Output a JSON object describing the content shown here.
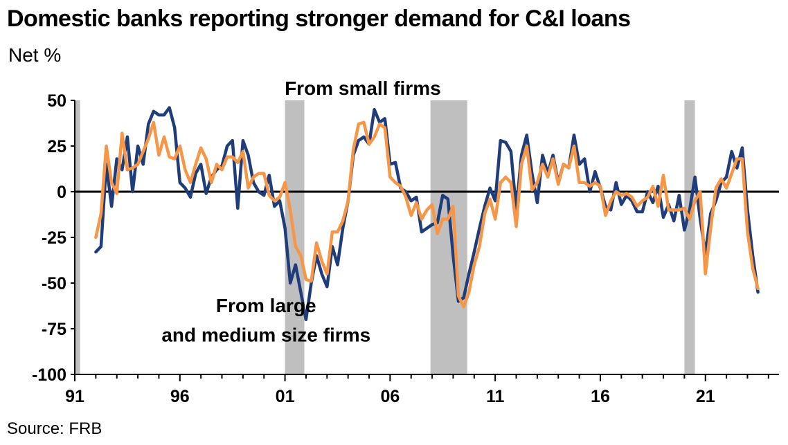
{
  "title": "Domestic banks reporting stronger demand for C&I loans",
  "subtitle": "Net %",
  "source": "Source: FRB",
  "chart_data": {
    "type": "line",
    "ylim": [
      -100,
      50
    ],
    "xlim": [
      1991.0,
      2024.5
    ],
    "y_ticks": [
      {
        "value": 50,
        "label": "50"
      },
      {
        "value": 25,
        "label": "25"
      },
      {
        "value": 0,
        "label": "0"
      },
      {
        "value": -25,
        "label": "-25"
      },
      {
        "value": -50,
        "label": "-50"
      },
      {
        "value": -75,
        "label": "-75"
      },
      {
        "value": -100,
        "label": "-100"
      }
    ],
    "x_ticks": [
      {
        "value": 1991,
        "label": "91"
      },
      {
        "value": 1996,
        "label": "96"
      },
      {
        "value": 2001,
        "label": "01"
      },
      {
        "value": 2006,
        "label": "06"
      },
      {
        "value": 2011,
        "label": "11"
      },
      {
        "value": 2016,
        "label": "16"
      },
      {
        "value": 2021,
        "label": "21"
      }
    ],
    "recessions": [
      {
        "start": 1991.0,
        "end": 1991.25
      },
      {
        "start": 2001.0,
        "end": 2001.92
      },
      {
        "start": 2007.92,
        "end": 2009.67
      },
      {
        "start": 2020.0,
        "end": 2020.5
      }
    ],
    "annotations": [
      {
        "text": "From small firms",
        "x": 2004.7,
        "y": 53
      },
      {
        "text": "From large",
        "x": 2000.1,
        "y": -66
      },
      {
        "text": "and medium size firms",
        "x": 2000.1,
        "y": -82
      }
    ],
    "series": [
      {
        "name": "From large and medium size firms",
        "color": "#1f3d7a",
        "points": [
          [
            1992.0,
            -33
          ],
          [
            1992.25,
            -30
          ],
          [
            1992.5,
            15
          ],
          [
            1992.75,
            -8
          ],
          [
            1993.0,
            18
          ],
          [
            1993.25,
            12
          ],
          [
            1993.5,
            30
          ],
          [
            1993.75,
            0
          ],
          [
            1994.0,
            25
          ],
          [
            1994.25,
            15
          ],
          [
            1994.5,
            37
          ],
          [
            1994.75,
            44
          ],
          [
            1995.0,
            42
          ],
          [
            1995.25,
            42
          ],
          [
            1995.5,
            46
          ],
          [
            1995.75,
            35
          ],
          [
            1996.0,
            5
          ],
          [
            1996.25,
            2
          ],
          [
            1996.5,
            -3
          ],
          [
            1996.75,
            10
          ],
          [
            1997.0,
            15
          ],
          [
            1997.25,
            -1
          ],
          [
            1997.5,
            8
          ],
          [
            1997.75,
            12
          ],
          [
            1998.0,
            14
          ],
          [
            1998.25,
            25
          ],
          [
            1998.5,
            28
          ],
          [
            1998.75,
            -9
          ],
          [
            1999.0,
            28
          ],
          [
            1999.25,
            20
          ],
          [
            1999.5,
            5
          ],
          [
            1999.75,
            0
          ],
          [
            2000.0,
            -2
          ],
          [
            2000.25,
            9
          ],
          [
            2000.5,
            -8
          ],
          [
            2000.75,
            -5
          ],
          [
            2001.0,
            -20
          ],
          [
            2001.25,
            -50
          ],
          [
            2001.5,
            -40
          ],
          [
            2001.75,
            -55
          ],
          [
            2002.0,
            -70
          ],
          [
            2002.25,
            -50
          ],
          [
            2002.5,
            -35
          ],
          [
            2002.75,
            -45
          ],
          [
            2003.0,
            -52
          ],
          [
            2003.25,
            -30
          ],
          [
            2003.5,
            -40
          ],
          [
            2003.75,
            -20
          ],
          [
            2004.0,
            -5
          ],
          [
            2004.25,
            20
          ],
          [
            2004.5,
            28
          ],
          [
            2004.75,
            30
          ],
          [
            2005.0,
            26
          ],
          [
            2005.25,
            45
          ],
          [
            2005.5,
            38
          ],
          [
            2005.75,
            40
          ],
          [
            2006.0,
            15
          ],
          [
            2006.25,
            16
          ],
          [
            2006.5,
            2
          ],
          [
            2006.75,
            0
          ],
          [
            2007.0,
            -5
          ],
          [
            2007.25,
            -3
          ],
          [
            2007.5,
            -22
          ],
          [
            2007.75,
            -20
          ],
          [
            2008.0,
            -18
          ],
          [
            2008.25,
            -17
          ],
          [
            2008.5,
            -2
          ],
          [
            2008.75,
            -4
          ],
          [
            2009.0,
            -35
          ],
          [
            2009.25,
            -60
          ],
          [
            2009.5,
            -58
          ],
          [
            2009.75,
            -45
          ],
          [
            2010.0,
            -33
          ],
          [
            2010.25,
            -20
          ],
          [
            2010.5,
            -8
          ],
          [
            2010.75,
            2
          ],
          [
            2011.0,
            -5
          ],
          [
            2011.25,
            28
          ],
          [
            2011.5,
            27
          ],
          [
            2011.75,
            22
          ],
          [
            2012.0,
            -10
          ],
          [
            2012.25,
            20
          ],
          [
            2012.5,
            31
          ],
          [
            2012.75,
            10
          ],
          [
            2013.0,
            -6
          ],
          [
            2013.25,
            20
          ],
          [
            2013.5,
            10
          ],
          [
            2013.75,
            20
          ],
          [
            2014.0,
            5
          ],
          [
            2014.25,
            15
          ],
          [
            2014.5,
            13
          ],
          [
            2014.75,
            31
          ],
          [
            2015.0,
            15
          ],
          [
            2015.25,
            18
          ],
          [
            2015.5,
            0
          ],
          [
            2015.75,
            11
          ],
          [
            2016.0,
            2
          ],
          [
            2016.25,
            -8
          ],
          [
            2016.5,
            -10
          ],
          [
            2016.75,
            5
          ],
          [
            2017.0,
            -7
          ],
          [
            2017.25,
            -2
          ],
          [
            2017.5,
            -5
          ],
          [
            2017.75,
            -11
          ],
          [
            2018.0,
            -11
          ],
          [
            2018.25,
            0
          ],
          [
            2018.5,
            -6
          ],
          [
            2018.75,
            3
          ],
          [
            2019.0,
            -14
          ],
          [
            2019.25,
            -7
          ],
          [
            2019.5,
            -16
          ],
          [
            2019.75,
            -2
          ],
          [
            2020.0,
            -21
          ],
          [
            2020.25,
            -10
          ],
          [
            2020.5,
            8
          ],
          [
            2020.75,
            -15
          ],
          [
            2021.0,
            -34
          ],
          [
            2021.25,
            -12
          ],
          [
            2021.5,
            -5
          ],
          [
            2021.75,
            5
          ],
          [
            2022.0,
            8
          ],
          [
            2022.25,
            22
          ],
          [
            2022.5,
            13
          ],
          [
            2022.75,
            24
          ],
          [
            2023.0,
            -10
          ],
          [
            2023.25,
            -35
          ],
          [
            2023.5,
            -55
          ]
        ]
      },
      {
        "name": "From small firms",
        "color": "#f79646",
        "points": [
          [
            1992.0,
            -25
          ],
          [
            1992.25,
            -12
          ],
          [
            1992.5,
            25
          ],
          [
            1992.75,
            5
          ],
          [
            1993.0,
            -1
          ],
          [
            1993.25,
            32
          ],
          [
            1993.5,
            12
          ],
          [
            1993.75,
            13
          ],
          [
            1994.0,
            15
          ],
          [
            1994.25,
            22
          ],
          [
            1994.5,
            29
          ],
          [
            1994.75,
            38
          ],
          [
            1995.0,
            20
          ],
          [
            1995.25,
            30
          ],
          [
            1995.5,
            19
          ],
          [
            1995.75,
            18
          ],
          [
            1996.0,
            25
          ],
          [
            1996.25,
            12
          ],
          [
            1996.5,
            5
          ],
          [
            1996.75,
            15
          ],
          [
            1997.0,
            24
          ],
          [
            1997.25,
            18
          ],
          [
            1997.5,
            5
          ],
          [
            1997.75,
            15
          ],
          [
            1998.0,
            12
          ],
          [
            1998.25,
            19
          ],
          [
            1998.5,
            19
          ],
          [
            1998.75,
            16
          ],
          [
            1999.0,
            22
          ],
          [
            1999.25,
            2
          ],
          [
            1999.5,
            8
          ],
          [
            1999.75,
            10
          ],
          [
            2000.0,
            10
          ],
          [
            2000.25,
            -2
          ],
          [
            2000.5,
            -5
          ],
          [
            2000.75,
            -3
          ],
          [
            2001.0,
            5
          ],
          [
            2001.25,
            -10
          ],
          [
            2001.5,
            -30
          ],
          [
            2001.75,
            -35
          ],
          [
            2002.0,
            -48
          ],
          [
            2002.25,
            -49
          ],
          [
            2002.5,
            -28
          ],
          [
            2002.75,
            -38
          ],
          [
            2003.0,
            -45
          ],
          [
            2003.25,
            -22
          ],
          [
            2003.5,
            -22
          ],
          [
            2003.75,
            -16
          ],
          [
            2004.0,
            -5
          ],
          [
            2004.25,
            23
          ],
          [
            2004.5,
            37
          ],
          [
            2004.75,
            38
          ],
          [
            2005.0,
            26
          ],
          [
            2005.25,
            30
          ],
          [
            2005.5,
            37
          ],
          [
            2005.75,
            35
          ],
          [
            2006.0,
            8
          ],
          [
            2006.25,
            5
          ],
          [
            2006.5,
            3
          ],
          [
            2006.75,
            -3
          ],
          [
            2007.0,
            -13
          ],
          [
            2007.25,
            -6
          ],
          [
            2007.5,
            -15
          ],
          [
            2007.75,
            -10
          ],
          [
            2008.0,
            -7
          ],
          [
            2008.25,
            -23
          ],
          [
            2008.5,
            -15
          ],
          [
            2008.75,
            -15
          ],
          [
            2009.0,
            -8
          ],
          [
            2009.25,
            -57
          ],
          [
            2009.5,
            -63
          ],
          [
            2009.75,
            -55
          ],
          [
            2010.0,
            -40
          ],
          [
            2010.25,
            -30
          ],
          [
            2010.5,
            -12
          ],
          [
            2010.75,
            -4
          ],
          [
            2011.0,
            -15
          ],
          [
            2011.25,
            5
          ],
          [
            2011.5,
            8
          ],
          [
            2011.75,
            5
          ],
          [
            2012.0,
            -19
          ],
          [
            2012.25,
            15
          ],
          [
            2012.5,
            25
          ],
          [
            2012.75,
            1
          ],
          [
            2013.0,
            5
          ],
          [
            2013.25,
            15
          ],
          [
            2013.5,
            8
          ],
          [
            2013.75,
            18
          ],
          [
            2014.0,
            4
          ],
          [
            2014.25,
            15
          ],
          [
            2014.5,
            13
          ],
          [
            2014.75,
            25
          ],
          [
            2015.0,
            5
          ],
          [
            2015.25,
            5
          ],
          [
            2015.5,
            3
          ],
          [
            2015.75,
            5
          ],
          [
            2016.0,
            3
          ],
          [
            2016.25,
            -13
          ],
          [
            2016.5,
            -5
          ],
          [
            2016.75,
            0
          ],
          [
            2017.0,
            -2
          ],
          [
            2017.25,
            -1
          ],
          [
            2017.5,
            -3
          ],
          [
            2017.75,
            -8
          ],
          [
            2018.0,
            -5
          ],
          [
            2018.25,
            -3
          ],
          [
            2018.5,
            3
          ],
          [
            2018.75,
            -8
          ],
          [
            2019.0,
            9
          ],
          [
            2019.25,
            -10
          ],
          [
            2019.5,
            -10
          ],
          [
            2019.75,
            -10
          ],
          [
            2020.0,
            -9
          ],
          [
            2020.25,
            -15
          ],
          [
            2020.5,
            -5
          ],
          [
            2020.75,
            0
          ],
          [
            2021.0,
            -45
          ],
          [
            2021.25,
            -20
          ],
          [
            2021.5,
            2
          ],
          [
            2021.75,
            7
          ],
          [
            2022.0,
            2
          ],
          [
            2022.25,
            10
          ],
          [
            2022.5,
            18
          ],
          [
            2022.75,
            18
          ],
          [
            2023.0,
            -22
          ],
          [
            2023.25,
            -42
          ],
          [
            2023.5,
            -53
          ]
        ]
      }
    ]
  }
}
